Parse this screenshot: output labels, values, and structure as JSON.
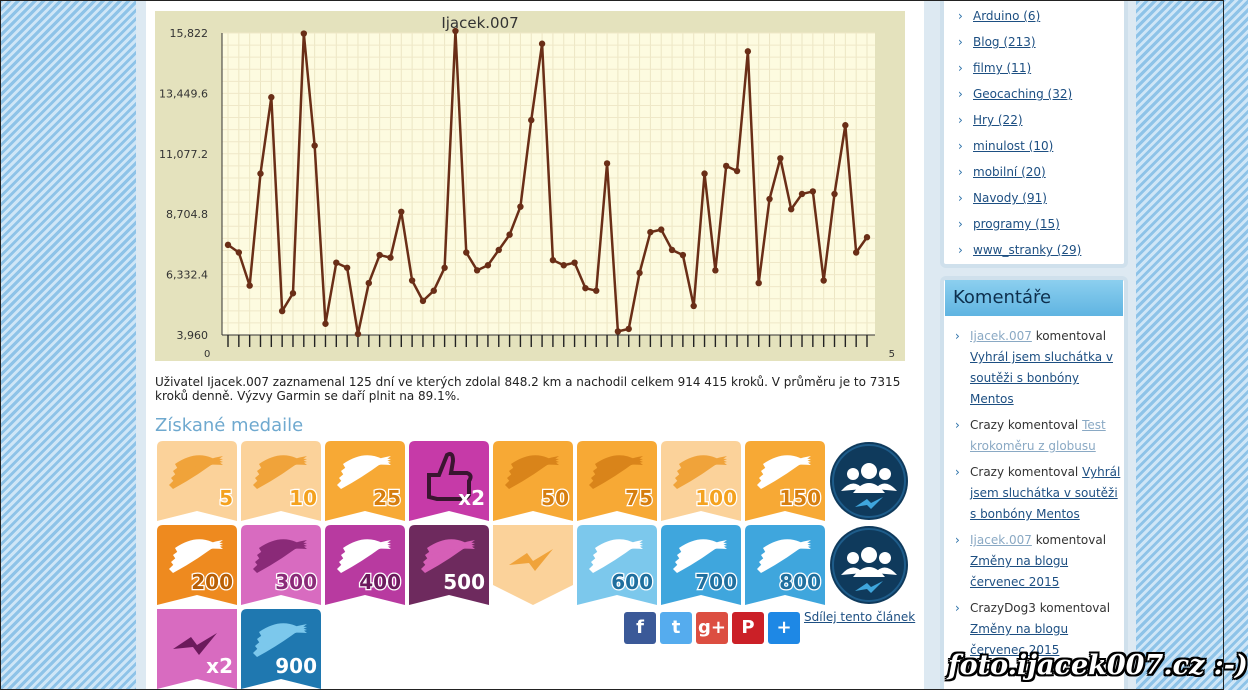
{
  "chart_data": {
    "type": "line",
    "title": "Ijacek.007",
    "y_ticks": [
      "3,960",
      "6,332.4",
      "8,704.8",
      "11,077.2",
      "13,449.6",
      "15,822"
    ],
    "ylim": [
      3960,
      15822
    ],
    "x_tick_labels_start": "0",
    "x_tick_labels_end": "5",
    "values": [
      7500,
      7200,
      5900,
      10300,
      13300,
      4900,
      5600,
      15800,
      11400,
      4400,
      6800,
      6600,
      4000,
      6000,
      7100,
      7000,
      8800,
      6100,
      5300,
      5700,
      6600,
      15900,
      7200,
      6500,
      6700,
      7300,
      7900,
      9000,
      12400,
      15400,
      6900,
      6700,
      6800,
      5800,
      5700,
      10700,
      4100,
      4200,
      6400,
      8000,
      8100,
      7300,
      7100,
      5100,
      10300,
      6500,
      10600,
      10400,
      15100,
      6000,
      9300,
      10900,
      8900,
      9500,
      9600,
      6100,
      9500,
      12200,
      7200,
      7800
    ],
    "line_color": "#6a2e17",
    "plot_background": "#fdfbe0",
    "frame_background": "#e4e2bd",
    "grid": true
  },
  "summary": "Uživatel Ijacek.007 zaznamenal 125 dní ve kterých zdolal 848.2 km a nachodil celkem 914 415 kroků. V průměru je to 7315 kroků denně. Výzvy Garmin se daří plnit na 89.1%.",
  "medals_heading": "Získané medaile",
  "medals": [
    {
      "label": "5",
      "kind": "ribbon",
      "color": "#fbd29a",
      "wing": "#f0a33a",
      "text_color": "#f4a21f"
    },
    {
      "label": "10",
      "kind": "ribbon",
      "color": "#fbd29a",
      "wing": "#f0a33a",
      "text_color": "#f4a21f"
    },
    {
      "label": "25",
      "kind": "ribbon",
      "color": "#f7a935",
      "wing": "#ffffff",
      "text_color": "#d67e0f"
    },
    {
      "label": "x2",
      "kind": "thumb",
      "color": "#c63aa8",
      "wing": "#3a1530",
      "text_color": "#ffffff"
    },
    {
      "label": "50",
      "kind": "ribbon",
      "color": "#f7a935",
      "wing": "#d9841a",
      "text_color": "#d67e0f"
    },
    {
      "label": "75",
      "kind": "ribbon",
      "color": "#f7a935",
      "wing": "#d9841a",
      "text_color": "#d67e0f"
    },
    {
      "label": "100",
      "kind": "ribbon",
      "color": "#fbd29a",
      "wing": "#f0a33a",
      "text_color": "#f4a21f"
    },
    {
      "label": "150",
      "kind": "ribbon",
      "color": "#f7a935",
      "wing": "#ffffff",
      "text_color": "#d67e0f"
    },
    {
      "label": "",
      "kind": "group",
      "color": "#0f3a5c",
      "wing": "#ffffff",
      "text_color": "#ffffff"
    },
    {
      "label": "200",
      "kind": "ribbon",
      "color": "#ee8a1f",
      "wing": "#ffffff",
      "text_color": "#b85f05"
    },
    {
      "label": "300",
      "kind": "ribbon",
      "color": "#d86bc0",
      "wing": "#8a2a78",
      "text_color": "#8a2a78"
    },
    {
      "label": "400",
      "kind": "ribbon",
      "color": "#b83aa0",
      "wing": "#ffffff",
      "text_color": "#6b1a5c"
    },
    {
      "label": "500",
      "kind": "ribbon",
      "color": "#6e2a5e",
      "wing": "#d65fb7",
      "text_color": "#ffffff"
    },
    {
      "label": "",
      "kind": "bolt",
      "color": "#fbd29a",
      "wing": "#f0a33a",
      "text_color": "#f4a21f"
    },
    {
      "label": "600",
      "kind": "ribbon",
      "color": "#7cc8ec",
      "wing": "#ffffff",
      "text_color": "#1f6f9e"
    },
    {
      "label": "700",
      "kind": "ribbon",
      "color": "#3fa6dd",
      "wing": "#ffffff",
      "text_color": "#1f6f9e"
    },
    {
      "label": "800",
      "kind": "ribbon",
      "color": "#3fa6dd",
      "wing": "#ffffff",
      "text_color": "#1f6f9e"
    },
    {
      "label": "",
      "kind": "group",
      "color": "#0f3a5c",
      "wing": "#ffffff",
      "text_color": "#ffffff"
    },
    {
      "label": "x2",
      "kind": "bolt2",
      "color": "#d86bc0",
      "wing": "#6b1a5c",
      "text_color": "#ffffff"
    },
    {
      "label": "900",
      "kind": "ribbon",
      "color": "#1f78b0",
      "wing": "#7cc8ec",
      "text_color": "#ffffff"
    }
  ],
  "share": {
    "buttons": [
      {
        "name": "facebook",
        "glyph": "f",
        "color": "#3b5998"
      },
      {
        "name": "twitter",
        "glyph": "t",
        "color": "#55acee"
      },
      {
        "name": "google-plus",
        "glyph": "g+",
        "color": "#dc4e41"
      },
      {
        "name": "pinterest",
        "glyph": "P",
        "color": "#cb2027"
      },
      {
        "name": "share-more",
        "glyph": "+",
        "color": "#1e88e5"
      }
    ],
    "link_label": "Sdílej tento článek"
  },
  "categories": [
    "Arduino (6)",
    "Blog (213)",
    "filmy (11)",
    "Geocaching (32)",
    "Hry (22)",
    "minulost (10)",
    "mobilní (20)",
    "Navody (91)",
    "programy (15)",
    "www_stranky (29)"
  ],
  "comments_title": "Komentáře",
  "comments": [
    {
      "author": "Ijacek.007",
      "author_is_link": true,
      "verb": "komentoval",
      "post": "Vyhrál jsem sluchátka v soutěži s bonbóny Mentos",
      "post_style": "dark"
    },
    {
      "author": "Crazy",
      "author_is_link": false,
      "verb": "komentoval",
      "post": "Test krokoměru z globusu",
      "post_style": "grey"
    },
    {
      "author": "Crazy",
      "author_is_link": false,
      "verb": "komentoval",
      "post": "Vyhrál jsem sluchátka v soutěži s bonbóny Mentos",
      "post_style": "dark"
    },
    {
      "author": "Ijacek.007",
      "author_is_link": true,
      "verb": "komentoval",
      "post": "Změny na blogu červenec 2015",
      "post_style": "dark"
    },
    {
      "author": "CrazyDog3",
      "author_is_link": false,
      "verb": "komentoval",
      "post": "Změny na blogu červenec 2015",
      "post_style": "dark"
    }
  ],
  "watermark": "foto.ijacek007.cz :-)"
}
